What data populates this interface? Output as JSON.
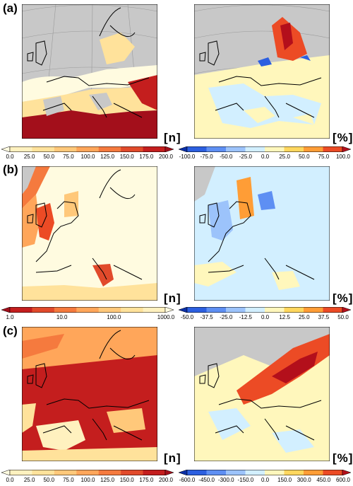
{
  "panels": [
    {
      "label": "(a)",
      "left": {
        "unit": "[n]",
        "colorbar_ticks": [
          "0.0",
          "25.0",
          "50.0",
          "75.0",
          "100.0",
          "125.0",
          "150.0",
          "175.0",
          "200.0"
        ],
        "colors": [
          "#fffbe0",
          "#fff1bf",
          "#ffe29b",
          "#ffc87a",
          "#ffa65a",
          "#f57a3e",
          "#e14a2b",
          "#c41e1e",
          "#a30f1b"
        ]
      },
      "right": {
        "unit": "[%]",
        "colorbar_ticks": [
          "-100.0",
          "-75.0",
          "-50.0",
          "-25.0",
          "0.0",
          "25.0",
          "50.0",
          "75.0",
          "100.0"
        ],
        "colors": [
          "#0b2fa6",
          "#2c5fe0",
          "#5e8ff3",
          "#9cc3fb",
          "#d2efff",
          "#fff7bc",
          "#ffd75e",
          "#ff9d36",
          "#ec4b25",
          "#b30f1b"
        ]
      }
    },
    {
      "label": "(b)",
      "left": {
        "unit": "[n]",
        "colorbar_ticks": [
          "1.0",
          "10.0",
          "100.0",
          "1000.0"
        ],
        "colors": [
          "#a30f1b",
          "#c41e1e",
          "#e14a2b",
          "#f57a3e",
          "#ffa65a",
          "#ffc87a",
          "#ffe29b",
          "#fff1bf",
          "#fffbe0"
        ]
      },
      "right": {
        "unit": "[%]",
        "colorbar_ticks": [
          "-50.0",
          "-37.5",
          "-25.0",
          "-12.5",
          "0.0",
          "12.5",
          "25.0",
          "37.5",
          "50.0"
        ],
        "colors": [
          "#0b2fa6",
          "#2c5fe0",
          "#5e8ff3",
          "#9cc3fb",
          "#d2efff",
          "#fff7bc",
          "#ffd75e",
          "#ff9d36",
          "#ec4b25",
          "#b30f1b"
        ]
      }
    },
    {
      "label": "(c)",
      "left": {
        "unit": "[n]",
        "colorbar_ticks": [
          "0.0",
          "25.0",
          "50.0",
          "75.0",
          "100.0",
          "125.0",
          "150.0",
          "175.0",
          "200.0"
        ],
        "colors": [
          "#fffbe0",
          "#fff1bf",
          "#ffe29b",
          "#ffc87a",
          "#ffa65a",
          "#f57a3e",
          "#e14a2b",
          "#c41e1e",
          "#a30f1b"
        ]
      },
      "right": {
        "unit": "[%]",
        "colorbar_ticks": [
          "-600.0",
          "-450.0",
          "-300.0",
          "-150.0",
          "0.0",
          "150.0",
          "300.0",
          "450.0",
          "600.0"
        ],
        "colors": [
          "#0b2fa6",
          "#2c5fe0",
          "#5e8ff3",
          "#9cc3fb",
          "#d2efff",
          "#fff7bc",
          "#ffd75e",
          "#ff9d36",
          "#ec4b25",
          "#b30f1b"
        ]
      }
    }
  ],
  "map_colors": {
    "land_mask": "#c8c8c8",
    "coast": "#000000",
    "grid": "#9a9a9a"
  }
}
